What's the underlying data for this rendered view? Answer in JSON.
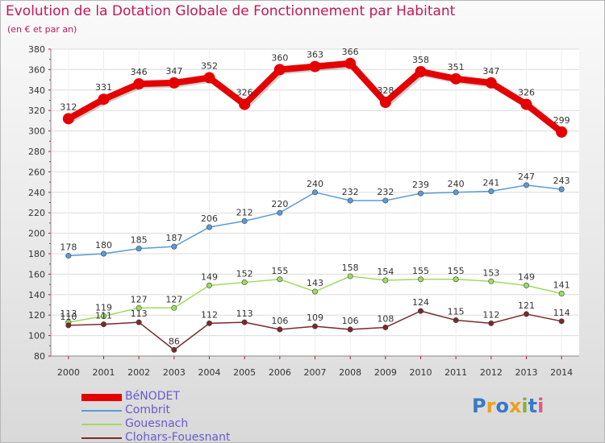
{
  "header": {
    "title": "Evolution de la Dotation Globale de Fonctionnement par Habitant",
    "subtitle": "(en € et par an)"
  },
  "logo": {
    "text": "Proxiti",
    "colors": [
      "#3a78c8",
      "#e8a11e",
      "#3a78c8",
      "#e8a11e",
      "#86b13a",
      "#3a78c8",
      "#e05b7b"
    ]
  },
  "chart_data": {
    "type": "line",
    "title": "Evolution de la Dotation Globale de Fonctionnement par Habitant",
    "subtitle": "(en € et par an)",
    "xlabel": "",
    "ylabel": "",
    "x": [
      "2000",
      "2001",
      "2002",
      "2003",
      "2004",
      "2005",
      "2006",
      "2007",
      "2008",
      "2009",
      "2010",
      "2011",
      "2012",
      "2013",
      "2014"
    ],
    "ylim": [
      80,
      380
    ],
    "yticks": [
      80,
      100,
      120,
      140,
      160,
      180,
      200,
      220,
      240,
      260,
      280,
      300,
      320,
      340,
      360,
      380
    ],
    "grid": true,
    "legend_position": "bottom-left",
    "series": [
      {
        "name": "BéNODET",
        "color": "#e50000",
        "highlight": true,
        "values": [
          312,
          331,
          346,
          347,
          352,
          326,
          360,
          363,
          366,
          328,
          358,
          351,
          347,
          326,
          299
        ]
      },
      {
        "name": "Combrit",
        "color": "#5b9bd5",
        "values": [
          178,
          180,
          185,
          187,
          206,
          212,
          220,
          240,
          232,
          232,
          239,
          240,
          241,
          247,
          243
        ]
      },
      {
        "name": "Gouesnach",
        "color": "#9edb60",
        "values": [
          113,
          119,
          127,
          127,
          149,
          152,
          155,
          143,
          158,
          154,
          155,
          155,
          153,
          149,
          141
        ]
      },
      {
        "name": "Clohars-Fouesnant",
        "color": "#7a2a2a",
        "values": [
          110,
          111,
          113,
          86,
          112,
          113,
          106,
          109,
          106,
          108,
          124,
          115,
          112,
          121,
          114
        ]
      }
    ]
  }
}
